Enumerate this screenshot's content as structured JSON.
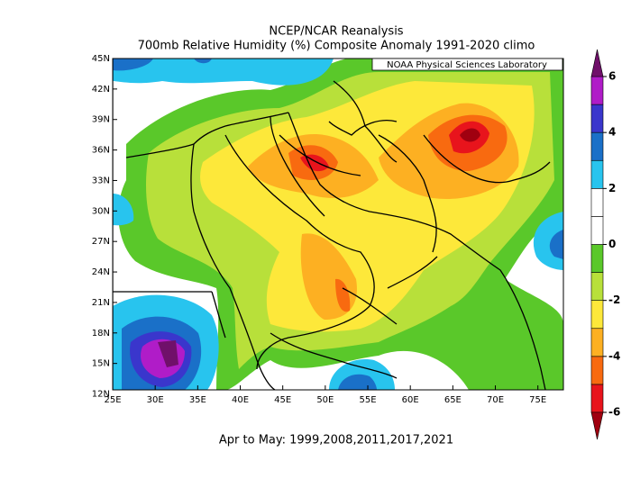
{
  "title": "NCEP/NCAR Reanalysis",
  "subtitle": "700mb Relative Humidity (%) Composite Anomaly 1991-2020 climo",
  "credit": "NOAA Physical Sciences Laboratory",
  "caption": "Apr to May: 1999,2008,2011,2017,2021",
  "map": {
    "lon_range": [
      25,
      78
    ],
    "lat_range": [
      12.4,
      45
    ],
    "lon_ticks": [
      {
        "value": 25,
        "label": "25E"
      },
      {
        "value": 30,
        "label": "30E"
      },
      {
        "value": 35,
        "label": "35E"
      },
      {
        "value": 40,
        "label": "40E"
      },
      {
        "value": 45,
        "label": "45E"
      },
      {
        "value": 50,
        "label": "50E"
      },
      {
        "value": 55,
        "label": "55E"
      },
      {
        "value": 60,
        "label": "60E"
      },
      {
        "value": 65,
        "label": "65E"
      },
      {
        "value": 70,
        "label": "70E"
      },
      {
        "value": 75,
        "label": "75E"
      }
    ],
    "lat_ticks": [
      {
        "value": 12,
        "label": "12N"
      },
      {
        "value": 15,
        "label": "15N"
      },
      {
        "value": 18,
        "label": "18N"
      },
      {
        "value": 21,
        "label": "21N"
      },
      {
        "value": 24,
        "label": "24N"
      },
      {
        "value": 27,
        "label": "27N"
      },
      {
        "value": 30,
        "label": "30N"
      },
      {
        "value": 33,
        "label": "33N"
      },
      {
        "value": 36,
        "label": "36N"
      },
      {
        "value": 39,
        "label": "39N"
      },
      {
        "value": 42,
        "label": "42N"
      },
      {
        "value": 45,
        "label": "45N"
      }
    ]
  },
  "colorbar": {
    "range": [
      -6,
      6
    ],
    "ticks": [
      -6,
      -4,
      -2,
      0,
      2,
      4,
      6
    ],
    "colors": [
      "#e8141c",
      "#f86a10",
      "#fdb022",
      "#fde83a",
      "#b8e03a",
      "#5ac82a",
      "#ffffff",
      "#ffffff",
      "#28c4ee",
      "#1a70c8",
      "#3a36cc",
      "#b01cc8"
    ],
    "extend_colors": [
      "#a00010",
      "#70106a"
    ]
  }
}
